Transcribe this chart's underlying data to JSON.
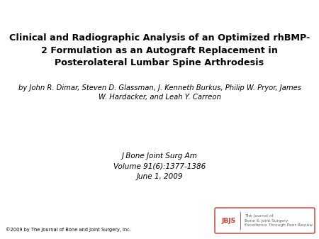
{
  "title": "Clinical and Radiographic Analysis of an Optimized rhBMP-\n2 Formulation as an Autograft Replacement in\nPosterolateral Lumbar Spine Arthrodesis",
  "authors": "by John R. Dimar, Steven D. Glassman, J. Kenneth Burkus, Philip W. Pryor, James\nW. Hardacker, and Leah Y. Carreon",
  "journal_line1": "J Bone Joint Surg Am",
  "journal_line2": "Volume 91(6):1377-1386",
  "journal_line3": "June 1, 2009",
  "copyright": "©2009 by The Journal of Bone and Joint Surgery, Inc.",
  "logo_text1": "JBJS",
  "logo_text2": "The Journal of\nBone & Joint Surgery\nExcellence Through Peer Review",
  "background_color": "#ffffff",
  "title_color": "#000000",
  "author_color": "#000000",
  "journal_color": "#000000",
  "copyright_color": "#000000",
  "logo_border_color": "#c0392b",
  "logo_text_color": "#c0392b",
  "logo_secondary_color": "#666666"
}
